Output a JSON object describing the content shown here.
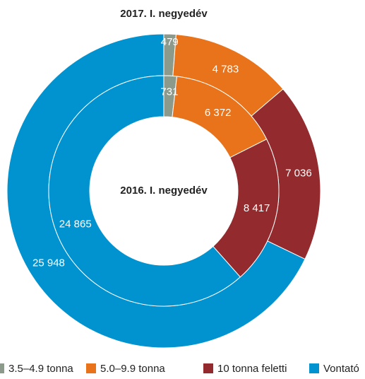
{
  "chart_data": {
    "type": "donut",
    "categories": [
      "3.5–4.9 tonna",
      "5.0–9.9 tonna",
      "10 tonna feletti",
      "Vontató"
    ],
    "colors": [
      "#8c9a8c",
      "#e8731a",
      "#932a2d",
      "#0093d0"
    ],
    "series": [
      {
        "name": "2017. I. negyedév",
        "values": [
          479,
          4783,
          7036,
          25948
        ],
        "value_labels": [
          "479",
          "4 783",
          "7 036",
          "25 948"
        ]
      },
      {
        "name": "2016. I. negyedév",
        "values": [
          731,
          6372,
          8417,
          24865
        ],
        "value_labels": [
          "731",
          "6 372",
          "8 417",
          "24 865"
        ]
      }
    ]
  }
}
